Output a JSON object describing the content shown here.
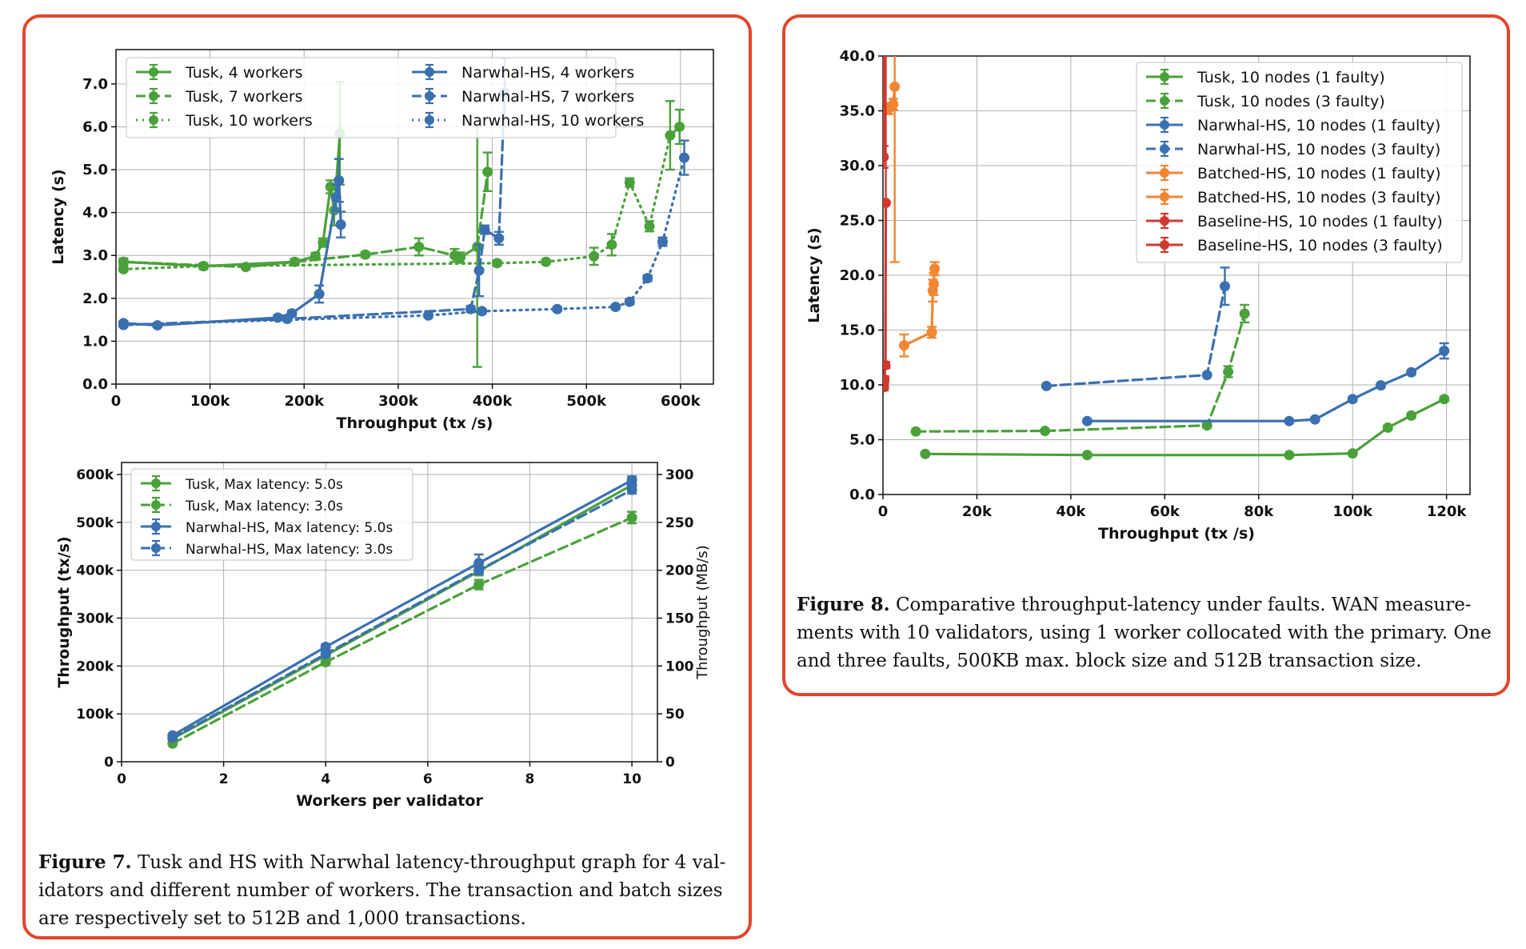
{
  "colors": {
    "green": "#4aa13a",
    "blue": "#3a70b0",
    "orange": "#f28532",
    "red": "#cf3a2f",
    "frame": "#e2452b"
  },
  "captions": {
    "fig7_label": "Figure 7.",
    "fig7_text": " Tusk and HS with Narwhal latency-throughput graph for 4 val-idators and different number of workers. The transaction and batch sizes are respectively set to 512B and 1,000 transactions.",
    "fig8_label": "Figure 8.",
    "fig8_text": " Comparative throughput-latency under faults. WAN measure-ments with 10 validators, using 1 worker collocated with the primary. One and three faults, 500KB max. block size and 512B transaction size."
  },
  "chart_data": [
    {
      "id": "fig7a",
      "type": "line",
      "xlabel": "Throughput (tx /s)",
      "ylabel": "Latency (s)",
      "xlim": [
        0,
        635000
      ],
      "ylim": [
        0,
        7.8
      ],
      "xticks": [
        0,
        100000,
        200000,
        300000,
        400000,
        500000,
        600000
      ],
      "xtick_labels": [
        "0",
        "100k",
        "200k",
        "300k",
        "400k",
        "500k",
        "600k"
      ],
      "yticks": [
        0,
        1,
        2,
        3,
        4,
        5,
        6,
        7
      ],
      "ytick_labels": [
        "0.0",
        "1.0",
        "2.0",
        "3.0",
        "4.0",
        "5.0",
        "6.0",
        "7.0"
      ],
      "grid": true,
      "legend_position": "top",
      "series": [
        {
          "name": "Tusk, 4 workers",
          "color": "#4aa13a",
          "style": "solid",
          "x": [
            8000,
            93000,
            190000,
            212000,
            220000,
            228000,
            232000,
            238000
          ],
          "y": [
            2.85,
            2.75,
            2.85,
            2.98,
            3.3,
            4.6,
            4.05,
            5.85
          ],
          "err": [
            0.08,
            0.07,
            0.07,
            0.08,
            0.1,
            0.15,
            0.35,
            1.2
          ]
        },
        {
          "name": "Tusk, 7 workers",
          "color": "#4aa13a",
          "style": "dashed",
          "x": [
            8000,
            138000,
            265000,
            322000,
            360000,
            366000,
            384000,
            395000
          ],
          "y": [
            2.85,
            2.73,
            3.02,
            3.2,
            3.0,
            2.95,
            3.2,
            4.95
          ],
          "err": [
            0.05,
            0.05,
            0.06,
            0.2,
            0.15,
            0.12,
            2.8,
            0.45
          ]
        },
        {
          "name": "Tusk, 10 workers",
          "color": "#4aa13a",
          "style": "dotted",
          "x": [
            8000,
            93000,
            405000,
            457000,
            508000,
            527000,
            546000,
            567000,
            589000,
            599000
          ],
          "y": [
            2.68,
            2.75,
            2.82,
            2.85,
            2.98,
            3.25,
            4.7,
            3.68,
            5.8,
            6.0
          ],
          "err": [
            0.05,
            0.05,
            0.06,
            0.05,
            0.2,
            0.25,
            0.1,
            0.12,
            0.8,
            0.4
          ]
        },
        {
          "name": "Narwhal-HS, 4 workers",
          "color": "#3a70b0",
          "style": "solid",
          "x": [
            8000,
            44000,
            172000,
            187000,
            216000,
            234000,
            237000,
            239000
          ],
          "y": [
            1.42,
            1.37,
            1.55,
            1.65,
            2.1,
            4.35,
            4.75,
            3.72
          ],
          "err": [
            0.05,
            0.04,
            0.06,
            0.06,
            0.2,
            0.3,
            0.5,
            0.3
          ]
        },
        {
          "name": "Narwhal-HS, 7 workers",
          "color": "#3a70b0",
          "style": "dashed",
          "x": [
            8000,
            182000,
            377000,
            386000,
            392000,
            407000,
            413000
          ],
          "y": [
            1.38,
            1.52,
            1.75,
            2.65,
            3.6,
            3.4,
            6.8
          ],
          "err": [
            0.04,
            0.05,
            0.07,
            0.6,
            0.1,
            0.15,
            0.8
          ]
        },
        {
          "name": "Narwhal-HS, 10 workers",
          "color": "#3a70b0",
          "style": "dotted",
          "x": [
            8000,
            332000,
            389000,
            469000,
            531000,
            546000,
            565000,
            581000,
            604000
          ],
          "y": [
            1.38,
            1.6,
            1.7,
            1.75,
            1.8,
            1.92,
            2.47,
            3.32,
            5.28
          ],
          "err": [
            0.04,
            0.05,
            0.05,
            0.05,
            0.05,
            0.06,
            0.07,
            0.1,
            0.4
          ]
        }
      ]
    },
    {
      "id": "fig7b",
      "type": "line",
      "xlabel": "Workers per validator",
      "ylabel": "Throughput (tx/s)",
      "ylabel_right": "Throughput (MB/s)",
      "xlim": [
        0,
        10.5
      ],
      "ylim": [
        0,
        625000
      ],
      "ylim_right": [
        0,
        312.5
      ],
      "xticks": [
        0,
        2,
        4,
        6,
        8,
        10
      ],
      "xtick_labels": [
        "0",
        "2",
        "4",
        "6",
        "8",
        "10"
      ],
      "yticks": [
        0,
        100000,
        200000,
        300000,
        400000,
        500000,
        600000
      ],
      "ytick_labels": [
        "0",
        "100k",
        "200k",
        "300k",
        "400k",
        "500k",
        "600k"
      ],
      "yticks_right": [
        0,
        50,
        100,
        150,
        200,
        250,
        300
      ],
      "ytick_labels_right": [
        "0",
        "50",
        "100",
        "150",
        "200",
        "250",
        "300"
      ],
      "grid": true,
      "legend_position": "top-left",
      "series": [
        {
          "name": "Tusk, Max latency: 5.0s",
          "color": "#4aa13a",
          "style": "solid",
          "x": [
            1,
            4,
            7,
            10
          ],
          "y": [
            48000,
            222000,
            398000,
            578000
          ],
          "err": [
            0,
            5000,
            9000,
            12000
          ]
        },
        {
          "name": "Tusk, Max latency: 3.0s",
          "color": "#4aa13a",
          "style": "dashed",
          "x": [
            1,
            4,
            7,
            10
          ],
          "y": [
            38000,
            208000,
            370000,
            510000
          ],
          "err": [
            0,
            5000,
            10000,
            12000
          ]
        },
        {
          "name": "Narwhal-HS, Max latency: 5.0s",
          "color": "#3a70b0",
          "style": "solid",
          "x": [
            1,
            4,
            7,
            10
          ],
          "y": [
            55000,
            240000,
            415000,
            588000
          ],
          "err": [
            0,
            5000,
            18000,
            8000
          ]
        },
        {
          "name": "Narwhal-HS, Max latency: 3.0s",
          "color": "#3a70b0",
          "style": "dashed",
          "x": [
            1,
            4,
            7,
            10
          ],
          "y": [
            50000,
            225000,
            400000,
            568000
          ],
          "err": [
            0,
            5000,
            8000,
            8000
          ]
        }
      ]
    },
    {
      "id": "fig8",
      "type": "line",
      "xlabel": "Throughput (tx /s)",
      "ylabel": "Latency (s)",
      "xlim": [
        0,
        125000
      ],
      "ylim": [
        0,
        40
      ],
      "xticks": [
        0,
        20000,
        40000,
        60000,
        80000,
        100000,
        120000
      ],
      "xtick_labels": [
        "0",
        "20k",
        "40k",
        "60k",
        "80k",
        "100k",
        "120k"
      ],
      "yticks": [
        0,
        5,
        10,
        15,
        20,
        25,
        30,
        35,
        40
      ],
      "ytick_labels": [
        "0.0",
        "5.0",
        "10.0",
        "15.0",
        "20.0",
        "25.0",
        "30.0",
        "35.0",
        "40.0"
      ],
      "grid": true,
      "legend_position": "top-right",
      "series": [
        {
          "name": "Tusk, 10 nodes (1 faulty)",
          "color": "#4aa13a",
          "style": "solid",
          "x": [
            9000,
            43500,
            86500,
            100000,
            107500,
            112500,
            119500
          ],
          "y": [
            3.7,
            3.6,
            3.6,
            3.75,
            6.1,
            7.2,
            8.7
          ],
          "err": [
            0.1,
            0.1,
            0.1,
            0.1,
            0.2,
            0.2,
            0.2
          ]
        },
        {
          "name": "Tusk, 10 nodes (3 faulty)",
          "color": "#4aa13a",
          "style": "dashed",
          "x": [
            7000,
            34500,
            69000,
            73500,
            77000
          ],
          "y": [
            5.75,
            5.8,
            6.3,
            11.2,
            16.5
          ],
          "err": [
            0.1,
            0.1,
            0.2,
            0.5,
            0.8
          ]
        },
        {
          "name": "Narwhal-HS, 10 nodes (1 faulty)",
          "color": "#3a70b0",
          "style": "solid",
          "x": [
            43500,
            86500,
            92000,
            100000,
            106000,
            112500,
            119500
          ],
          "y": [
            6.7,
            6.7,
            6.85,
            8.7,
            9.95,
            11.15,
            13.1
          ],
          "err": [
            0.1,
            0.1,
            0.1,
            0.2,
            0.2,
            0.2,
            0.7
          ]
        },
        {
          "name": "Narwhal-HS, 10 nodes (3 faulty)",
          "color": "#3a70b0",
          "style": "dashed",
          "x": [
            34800,
            69000,
            72800
          ],
          "y": [
            9.9,
            10.9,
            19.0
          ],
          "err": [
            0.1,
            0.1,
            1.7
          ]
        },
        {
          "name": "Batched-HS, 10 nodes (1 faulty)",
          "color": "#f28532",
          "style": "solid",
          "x": [
            4500,
            10400,
            10600,
            10800,
            11000
          ],
          "y": [
            13.6,
            14.8,
            18.6,
            19.2,
            20.6
          ],
          "err": [
            1.0,
            0.5,
            1.0,
            1.0,
            0.6
          ]
        },
        {
          "name": "Batched-HS, 10 nodes (3 faulty)",
          "color": "#f28532",
          "style": "solid",
          "x": [
            1200,
            2200,
            2500
          ],
          "y": [
            35.2,
            35.6,
            37.2
          ],
          "err": [
            0.5,
            0.5,
            16
          ]
        },
        {
          "name": "Baseline-HS, 10 nodes (1 faulty)",
          "color": "#cf3a2f",
          "style": "solid",
          "x": [
            200,
            300,
            500,
            600
          ],
          "y": [
            9.8,
            10.5,
            11.8,
            26.6
          ],
          "err": [
            0.3,
            0.3,
            0.3,
            15
          ]
        },
        {
          "name": "Baseline-HS, 10 nodes (3 faulty)",
          "color": "#cf3a2f",
          "style": "solid",
          "x": [
            150,
            300
          ],
          "y": [
            30.8,
            45.0
          ],
          "err": [
            1.0,
            5.0
          ]
        }
      ]
    }
  ]
}
